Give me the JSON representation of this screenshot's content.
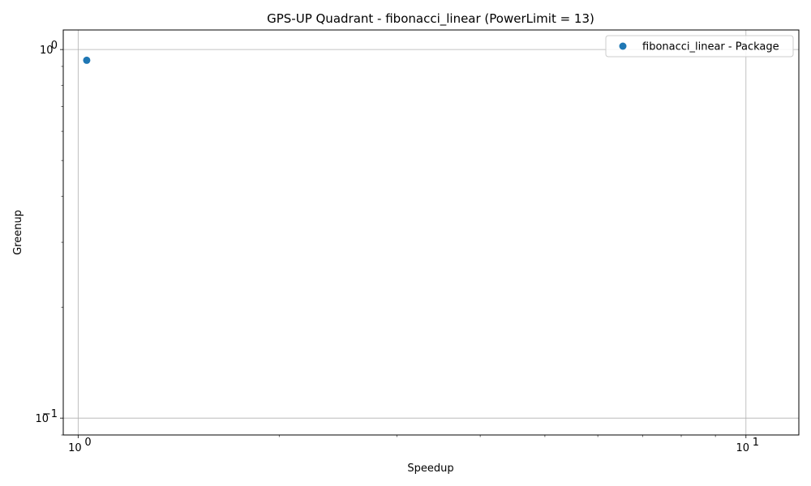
{
  "chart_data": {
    "type": "scatter",
    "title": "GPS-UP Quadrant - fibonacci_linear (PowerLimit = 13)",
    "xlabel": "Speedup",
    "ylabel": "Greenup",
    "xscale": "log",
    "yscale": "log",
    "xlim": [
      0.95,
      12.0
    ],
    "ylim": [
      0.09,
      1.13
    ],
    "x_ticks": [
      {
        "value": 1,
        "label": "10",
        "exp": "0"
      },
      {
        "value": 10,
        "label": "10",
        "exp": "1"
      }
    ],
    "y_ticks": [
      {
        "value": 0.1,
        "label": "10",
        "exp": "−1"
      },
      {
        "value": 1,
        "label": "10",
        "exp": "0"
      }
    ],
    "grid": true,
    "legend_position": "top-right",
    "series": [
      {
        "name": "fibonacci_linear - Package",
        "color": "#1f77b4",
        "marker": "circle",
        "points": [
          {
            "x": 1.03,
            "y": 0.935
          }
        ]
      }
    ]
  }
}
